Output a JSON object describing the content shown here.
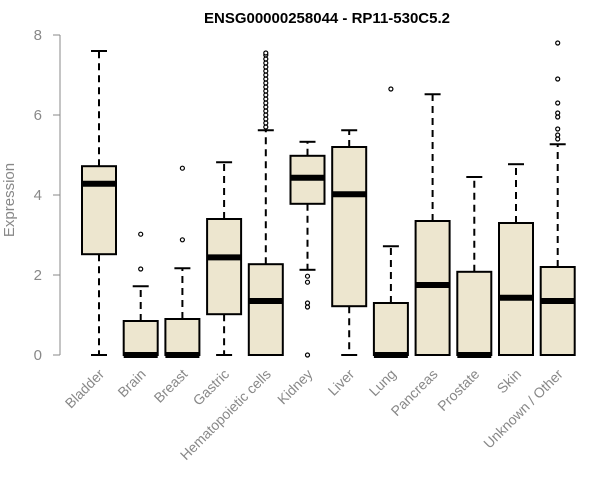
{
  "chart_data": {
    "type": "boxplot",
    "title": "ENSG00000258044 - RP11-530C5.2",
    "ylabel": "Expression",
    "xlabel": "",
    "ylim": [
      0,
      8
    ],
    "yticks": [
      0,
      2,
      4,
      6,
      8
    ],
    "grid": false,
    "box_fill": "#ede6cf",
    "box_stroke": "#000000",
    "categories": [
      "Bladder",
      "Brain",
      "Breast",
      "Gastric",
      "Hematopoietic cells",
      "Kidney",
      "Liver",
      "Lung",
      "Pancreas",
      "Prostate",
      "Skin",
      "Unknown / Other"
    ],
    "boxes": [
      {
        "name": "Bladder",
        "whisker_low": 0,
        "q1": 2.52,
        "median": 4.28,
        "q3": 4.72,
        "whisker_high": 7.6,
        "outliers": []
      },
      {
        "name": "Brain",
        "whisker_low": 0,
        "q1": 0,
        "median": 0,
        "q3": 0.85,
        "whisker_high": 1.72,
        "outliers": [
          2.15,
          3.02
        ]
      },
      {
        "name": "Breast",
        "whisker_low": 0,
        "q1": 0,
        "median": 0,
        "q3": 0.9,
        "whisker_high": 2.17,
        "outliers": [
          2.88,
          4.67
        ]
      },
      {
        "name": "Gastric",
        "whisker_low": 0,
        "q1": 1.02,
        "median": 2.44,
        "q3": 3.4,
        "whisker_high": 4.82,
        "outliers": []
      },
      {
        "name": "Hematopoietic cells",
        "whisker_low": 0,
        "q1": 0,
        "median": 1.35,
        "q3": 2.27,
        "whisker_high": 5.62,
        "outliers": [
          5.7,
          5.8,
          5.9,
          6.0,
          6.1,
          6.2,
          6.3,
          6.4,
          6.5,
          6.6,
          6.7,
          6.8,
          6.9,
          7.0,
          7.1,
          7.2,
          7.3,
          7.4,
          7.5,
          7.55
        ]
      },
      {
        "name": "Kidney",
        "whisker_low": 2.13,
        "q1": 3.78,
        "median": 4.43,
        "q3": 4.98,
        "whisker_high": 5.33,
        "outliers": [
          0,
          1.2,
          1.3,
          1.82,
          1.97
        ]
      },
      {
        "name": "Liver",
        "whisker_low": 0,
        "q1": 1.22,
        "median": 4.02,
        "q3": 5.2,
        "whisker_high": 5.62,
        "outliers": []
      },
      {
        "name": "Lung",
        "whisker_low": 0,
        "q1": 0,
        "median": 0,
        "q3": 1.3,
        "whisker_high": 2.72,
        "outliers": [
          6.65
        ]
      },
      {
        "name": "Pancreas",
        "whisker_low": 0,
        "q1": 0,
        "median": 1.75,
        "q3": 3.35,
        "whisker_high": 6.52,
        "outliers": []
      },
      {
        "name": "Prostate",
        "whisker_low": 0,
        "q1": 0,
        "median": 0,
        "q3": 2.08,
        "whisker_high": 4.45,
        "outliers": []
      },
      {
        "name": "Skin",
        "whisker_low": 0,
        "q1": 0,
        "median": 1.43,
        "q3": 3.3,
        "whisker_high": 4.77,
        "outliers": []
      },
      {
        "name": "Unknown / Other",
        "whisker_low": 0,
        "q1": 0,
        "median": 1.35,
        "q3": 2.2,
        "whisker_high": 5.27,
        "outliers": [
          5.4,
          5.5,
          5.65,
          5.95,
          6.05,
          6.3,
          6.9,
          7.8
        ]
      }
    ]
  }
}
